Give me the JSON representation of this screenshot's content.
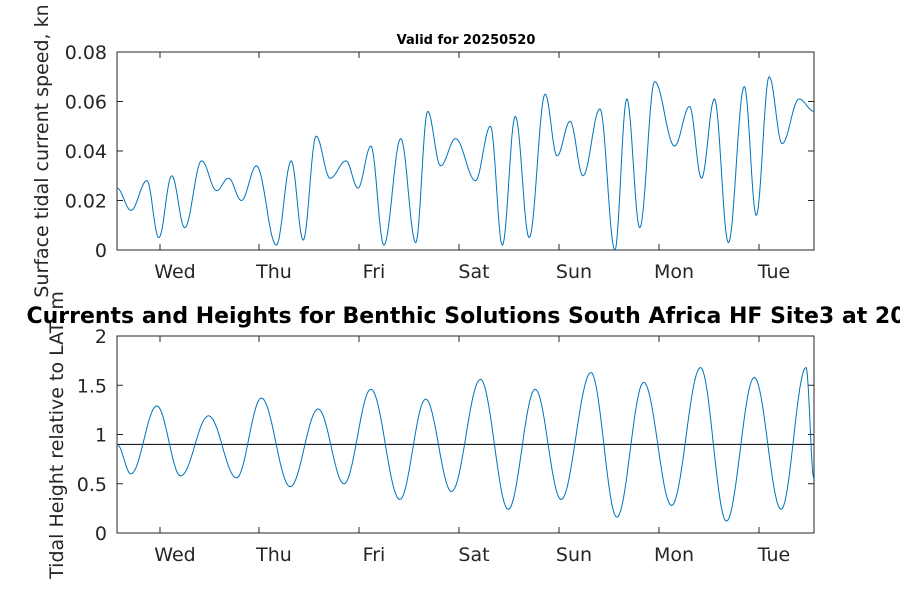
{
  "chart_data": [
    {
      "type": "line",
      "title": "Valid for 20250520",
      "ylabel": "Surface tidal current speed, kn",
      "xlabel": "",
      "x_tick_labels": [
        "Wed",
        "Thu",
        "Fri",
        "Sat",
        "Sun",
        "Mon",
        "Tue"
      ],
      "ylim": [
        0,
        0.08
      ],
      "y_ticks": [
        "0",
        "0.02",
        "0.04",
        "0.06",
        "0.08"
      ],
      "x_range_days": [
        0,
        7
      ],
      "grid": false,
      "color": "#0072BD",
      "series": [
        {
          "x": [
            0.0,
            0.14,
            0.3,
            0.42,
            0.55,
            0.68,
            0.85,
            1.0,
            1.12,
            1.25,
            1.4,
            1.6,
            1.75,
            1.87,
            2.0,
            2.14,
            2.3,
            2.42,
            2.55,
            2.68,
            2.85,
            3.0,
            3.12,
            3.25,
            3.4,
            3.6,
            3.75,
            3.87,
            4.0,
            4.14,
            4.3,
            4.42,
            4.55,
            4.68,
            4.85,
            5.0,
            5.12,
            5.25,
            5.4,
            5.6,
            5.75,
            5.87,
            6.0,
            6.14,
            6.3,
            6.42,
            6.55,
            6.68,
            6.85,
            7.0
          ],
          "y": [
            0.025,
            0.016,
            0.028,
            0.005,
            0.03,
            0.009,
            0.036,
            0.024,
            0.029,
            0.02,
            0.034,
            0.002,
            0.036,
            0.004,
            0.046,
            0.029,
            0.036,
            0.025,
            0.042,
            0.002,
            0.045,
            0.003,
            0.056,
            0.034,
            0.045,
            0.028,
            0.05,
            0.002,
            0.054,
            0.005,
            0.063,
            0.038,
            0.052,
            0.03,
            0.057,
            0.0,
            0.061,
            0.009,
            0.068,
            0.042,
            0.058,
            0.029,
            0.061,
            0.003,
            0.066,
            0.014,
            0.07,
            0.043,
            0.061,
            0.056
          ]
        }
      ]
    },
    {
      "type": "line",
      "title": "Currents and Heights for Benthic Solutions South Africa HF Site3 at 20",
      "ylabel": "Tidal Height relative to LAT, m",
      "xlabel": "",
      "x_tick_labels": [
        "Wed",
        "Thu",
        "Fri",
        "Sat",
        "Sun",
        "Mon",
        "Tue"
      ],
      "ylim": [
        0,
        2
      ],
      "y_ticks": [
        "0",
        "0.5",
        "1",
        "1.5",
        "2"
      ],
      "x_range_days": [
        0,
        7
      ],
      "grid": false,
      "color": "#0072BD",
      "reference_line": 0.9,
      "series": [
        {
          "x": [
            0.0,
            0.14,
            0.4,
            0.64,
            0.92,
            1.2,
            1.45,
            1.74,
            2.02,
            2.28,
            2.55,
            2.84,
            3.1,
            3.36,
            3.65,
            3.93,
            4.2,
            4.46,
            4.76,
            5.02,
            5.29,
            5.57,
            5.86,
            6.12,
            6.4,
            6.67,
            6.92,
            7.0
          ],
          "y": [
            0.9,
            0.6,
            1.29,
            0.58,
            1.19,
            0.56,
            1.37,
            0.47,
            1.26,
            0.5,
            1.46,
            0.34,
            1.36,
            0.42,
            1.56,
            0.24,
            1.46,
            0.34,
            1.63,
            0.16,
            1.53,
            0.28,
            1.68,
            0.12,
            1.58,
            0.24,
            1.68,
            0.55
          ]
        }
      ]
    }
  ]
}
